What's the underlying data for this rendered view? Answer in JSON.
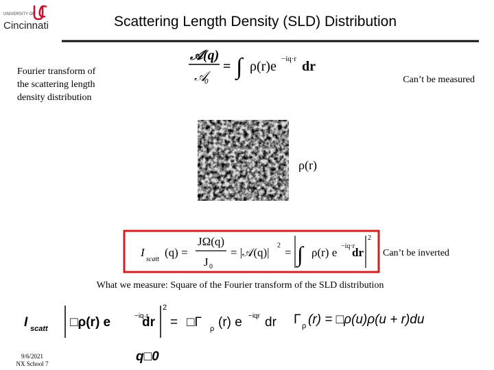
{
  "header": {
    "logo_top": "UNIVERSITY OF",
    "logo_name": "Cincinnati",
    "title": "Scattering Length Density (SLD) Distribution"
  },
  "intro_lines": [
    "Fourier transform of",
    "the scattering length",
    "density distribution"
  ],
  "eq1": {
    "num": "𝒜(q)",
    "den": "𝒜",
    "den_sub": "0",
    "eq": "=",
    "int": "∫",
    "body": "ρ(r)e",
    "sup": "−iq·r",
    "dr": "dr"
  },
  "note_measured": "Can’t be measured",
  "image_label": "ρ(r)",
  "eq2": {
    "lhs": "I",
    "lhs_sub": "scatt",
    "arg": "(q) =",
    "num": "JΩ(q)",
    "den": "J",
    "den_sub": "0",
    "mid": "= |𝒜(q)|",
    "mid_sup": "2",
    "eq": "=",
    "int": "∫",
    "body": "ρ(r) e",
    "sup": "−iq·r",
    "dr": "dr",
    "pow": "2"
  },
  "note_inverted": "Can’t be inverted",
  "caption": "What we measure:  Square of the Fourier transform of the SLD distribution",
  "eq3": {
    "lhs": "I",
    "lhs_sub": "scatt",
    "body": "□ρ(r) e",
    "sup": "−iq·r",
    "dr": "dr",
    "pow": "2",
    "eq": "=",
    "gamma": "□Γ",
    "gamma_sub": "ρ",
    "body2": "(r) e",
    "sup2": "−iqr",
    "dr2": "dr",
    "def": "Γ",
    "def_sub": "ρ",
    "def_body": "(r) = □ρ(u)ρ(u + r)du",
    "limit": "q□0"
  },
  "footer": {
    "date": "9/6/2021",
    "event": "NX School 7"
  }
}
